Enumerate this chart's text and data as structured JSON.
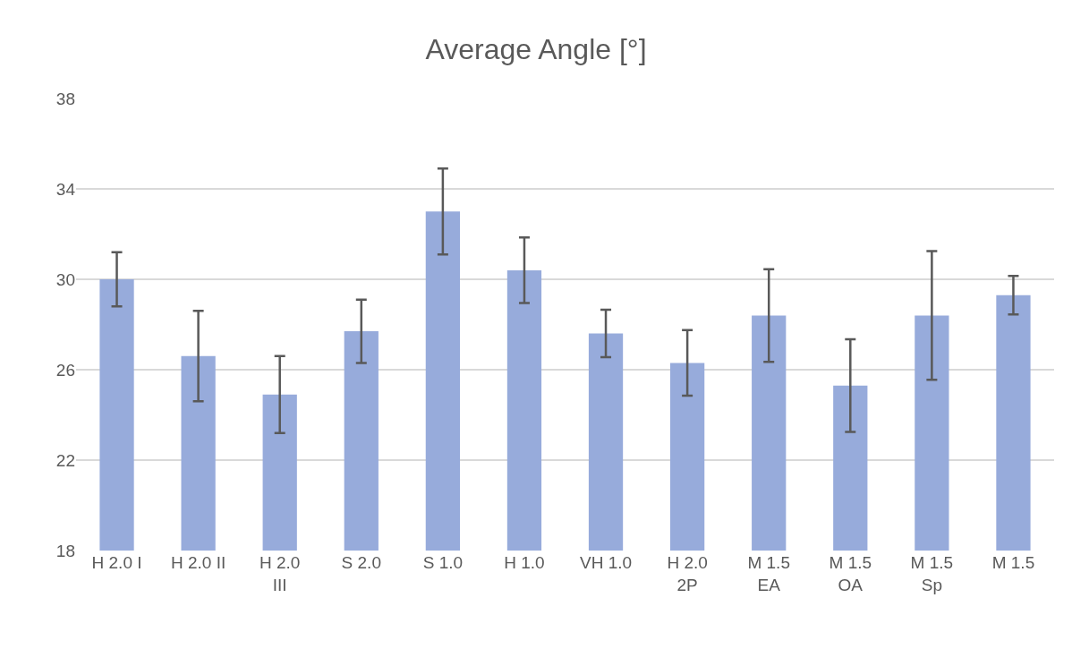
{
  "chart_data": {
    "type": "bar",
    "title": "Average Angle [°]",
    "categories": [
      "H 2.0 I",
      "H 2.0 II",
      "H 2.0\nIII",
      "S 2.0",
      "S 1.0",
      "H 1.0",
      "VH 1.0",
      "H 2.0\n2P",
      "M 1.5\nEA",
      "M 1.5\nOA",
      "M 1.5\nSp",
      "M 1.5"
    ],
    "values": [
      30.0,
      26.6,
      24.9,
      27.7,
      33.0,
      30.4,
      27.6,
      26.3,
      28.4,
      25.3,
      28.4,
      29.3
    ],
    "errors": [
      1.2,
      2.0,
      1.7,
      1.4,
      1.9,
      1.45,
      1.05,
      1.45,
      2.05,
      2.05,
      2.85,
      0.85
    ],
    "color": "#97abdb",
    "ylim": [
      18,
      38
    ],
    "yticks": [
      18,
      22,
      26,
      30,
      34,
      38
    ],
    "grid": "y"
  }
}
